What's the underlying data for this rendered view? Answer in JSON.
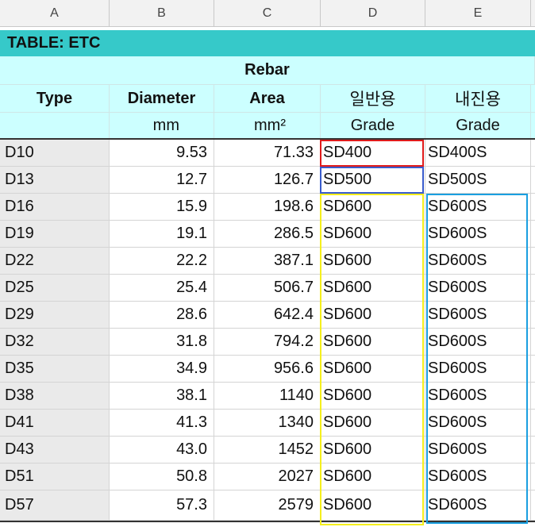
{
  "columns": [
    "A",
    "B",
    "C",
    "D",
    "E"
  ],
  "title": "TABLE: ETC",
  "group_header": "Rebar",
  "headers": [
    "Type",
    "Diameter",
    "Area",
    "일반용",
    "내진용"
  ],
  "units": [
    "",
    "mm",
    "mm²",
    "Grade",
    "Grade"
  ],
  "rows": [
    [
      "D10",
      "9.53",
      "71.33",
      "SD400",
      "SD400S"
    ],
    [
      "D13",
      "12.7",
      "126.7",
      "SD500",
      "SD500S"
    ],
    [
      "D16",
      "15.9",
      "198.6",
      "SD600",
      "SD600S"
    ],
    [
      "D19",
      "19.1",
      "286.5",
      "SD600",
      "SD600S"
    ],
    [
      "D22",
      "22.2",
      "387.1",
      "SD600",
      "SD600S"
    ],
    [
      "D25",
      "25.4",
      "506.7",
      "SD600",
      "SD600S"
    ],
    [
      "D29",
      "28.6",
      "642.4",
      "SD600",
      "SD600S"
    ],
    [
      "D32",
      "31.8",
      "794.2",
      "SD600",
      "SD600S"
    ],
    [
      "D35",
      "34.9",
      "956.6",
      "SD600",
      "SD600S"
    ],
    [
      "D38",
      "38.1",
      "1140",
      "SD600",
      "SD600S"
    ],
    [
      "D41",
      "41.3",
      "1340",
      "SD600",
      "SD600S"
    ],
    [
      "D43",
      "43.0",
      "1452",
      "SD600",
      "SD600S"
    ],
    [
      "D51",
      "50.8",
      "2027",
      "SD600",
      "SD600S"
    ],
    [
      "D57",
      "57.3",
      "2579",
      "SD600",
      "SD600S"
    ]
  ],
  "highlight_colors": {
    "sd400": "#e01b1b",
    "sd500": "#3a5ccc",
    "sd600": "#f5ef1c",
    "sd600s": "#1a9fe0"
  }
}
